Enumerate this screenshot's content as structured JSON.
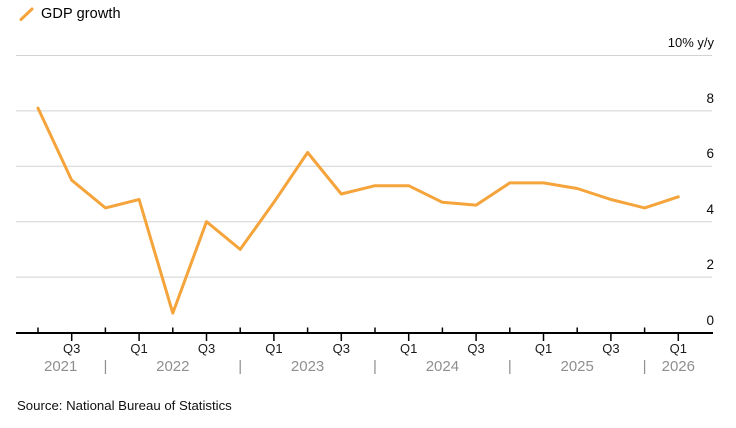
{
  "legend": {
    "label": "GDP growth"
  },
  "source": "Source: National Bureau of Statistics",
  "colors": {
    "accent_orange": "#F5A43B",
    "gridline": "#D2D2D2",
    "axis": "#000000",
    "tick_text": "#1A1A1A",
    "year_text": "#8F8F8F",
    "background": "#FFFFFF"
  },
  "chart_data": {
    "type": "line",
    "title": "GDP growth",
    "series_name": "GDP growth",
    "unit": "% y/y",
    "y_axis_top_label": "10% y/y",
    "x_quarters": [
      "2021 Q2",
      "2021 Q3",
      "2021 Q4",
      "2022 Q1",
      "2022 Q2",
      "2022 Q3",
      "2022 Q4",
      "2023 Q1",
      "2023 Q2",
      "2023 Q3",
      "2023 Q4",
      "2024 Q1",
      "2024 Q2",
      "2024 Q3",
      "2024 Q4",
      "2025 Q1",
      "2025 Q2",
      "2025 Q3",
      "2025 Q4",
      "2026 Q1"
    ],
    "values": [
      8.1,
      5.5,
      4.5,
      4.8,
      0.7,
      4.0,
      3.0,
      4.7,
      6.5,
      5.0,
      5.3,
      5.3,
      4.7,
      4.6,
      5.4,
      5.4,
      5.2,
      4.8,
      4.5,
      4.9
    ],
    "ylim": [
      0,
      10
    ],
    "y_tick_values": [
      0,
      2,
      4,
      6,
      8
    ],
    "y_tick_labels": [
      "0",
      "2",
      "4",
      "6",
      "8"
    ],
    "x_tick_labels": [
      "Q3",
      "Q1",
      "Q3",
      "Q1",
      "Q3",
      "Q1",
      "Q3",
      "Q1",
      "Q3",
      "Q1"
    ],
    "year_labels": [
      "2021",
      "2022",
      "2023",
      "2024",
      "2025",
      "2026"
    ],
    "year_separator": "|",
    "grid": true,
    "legend_position": "top-left",
    "line_color": "#F5A43B"
  }
}
